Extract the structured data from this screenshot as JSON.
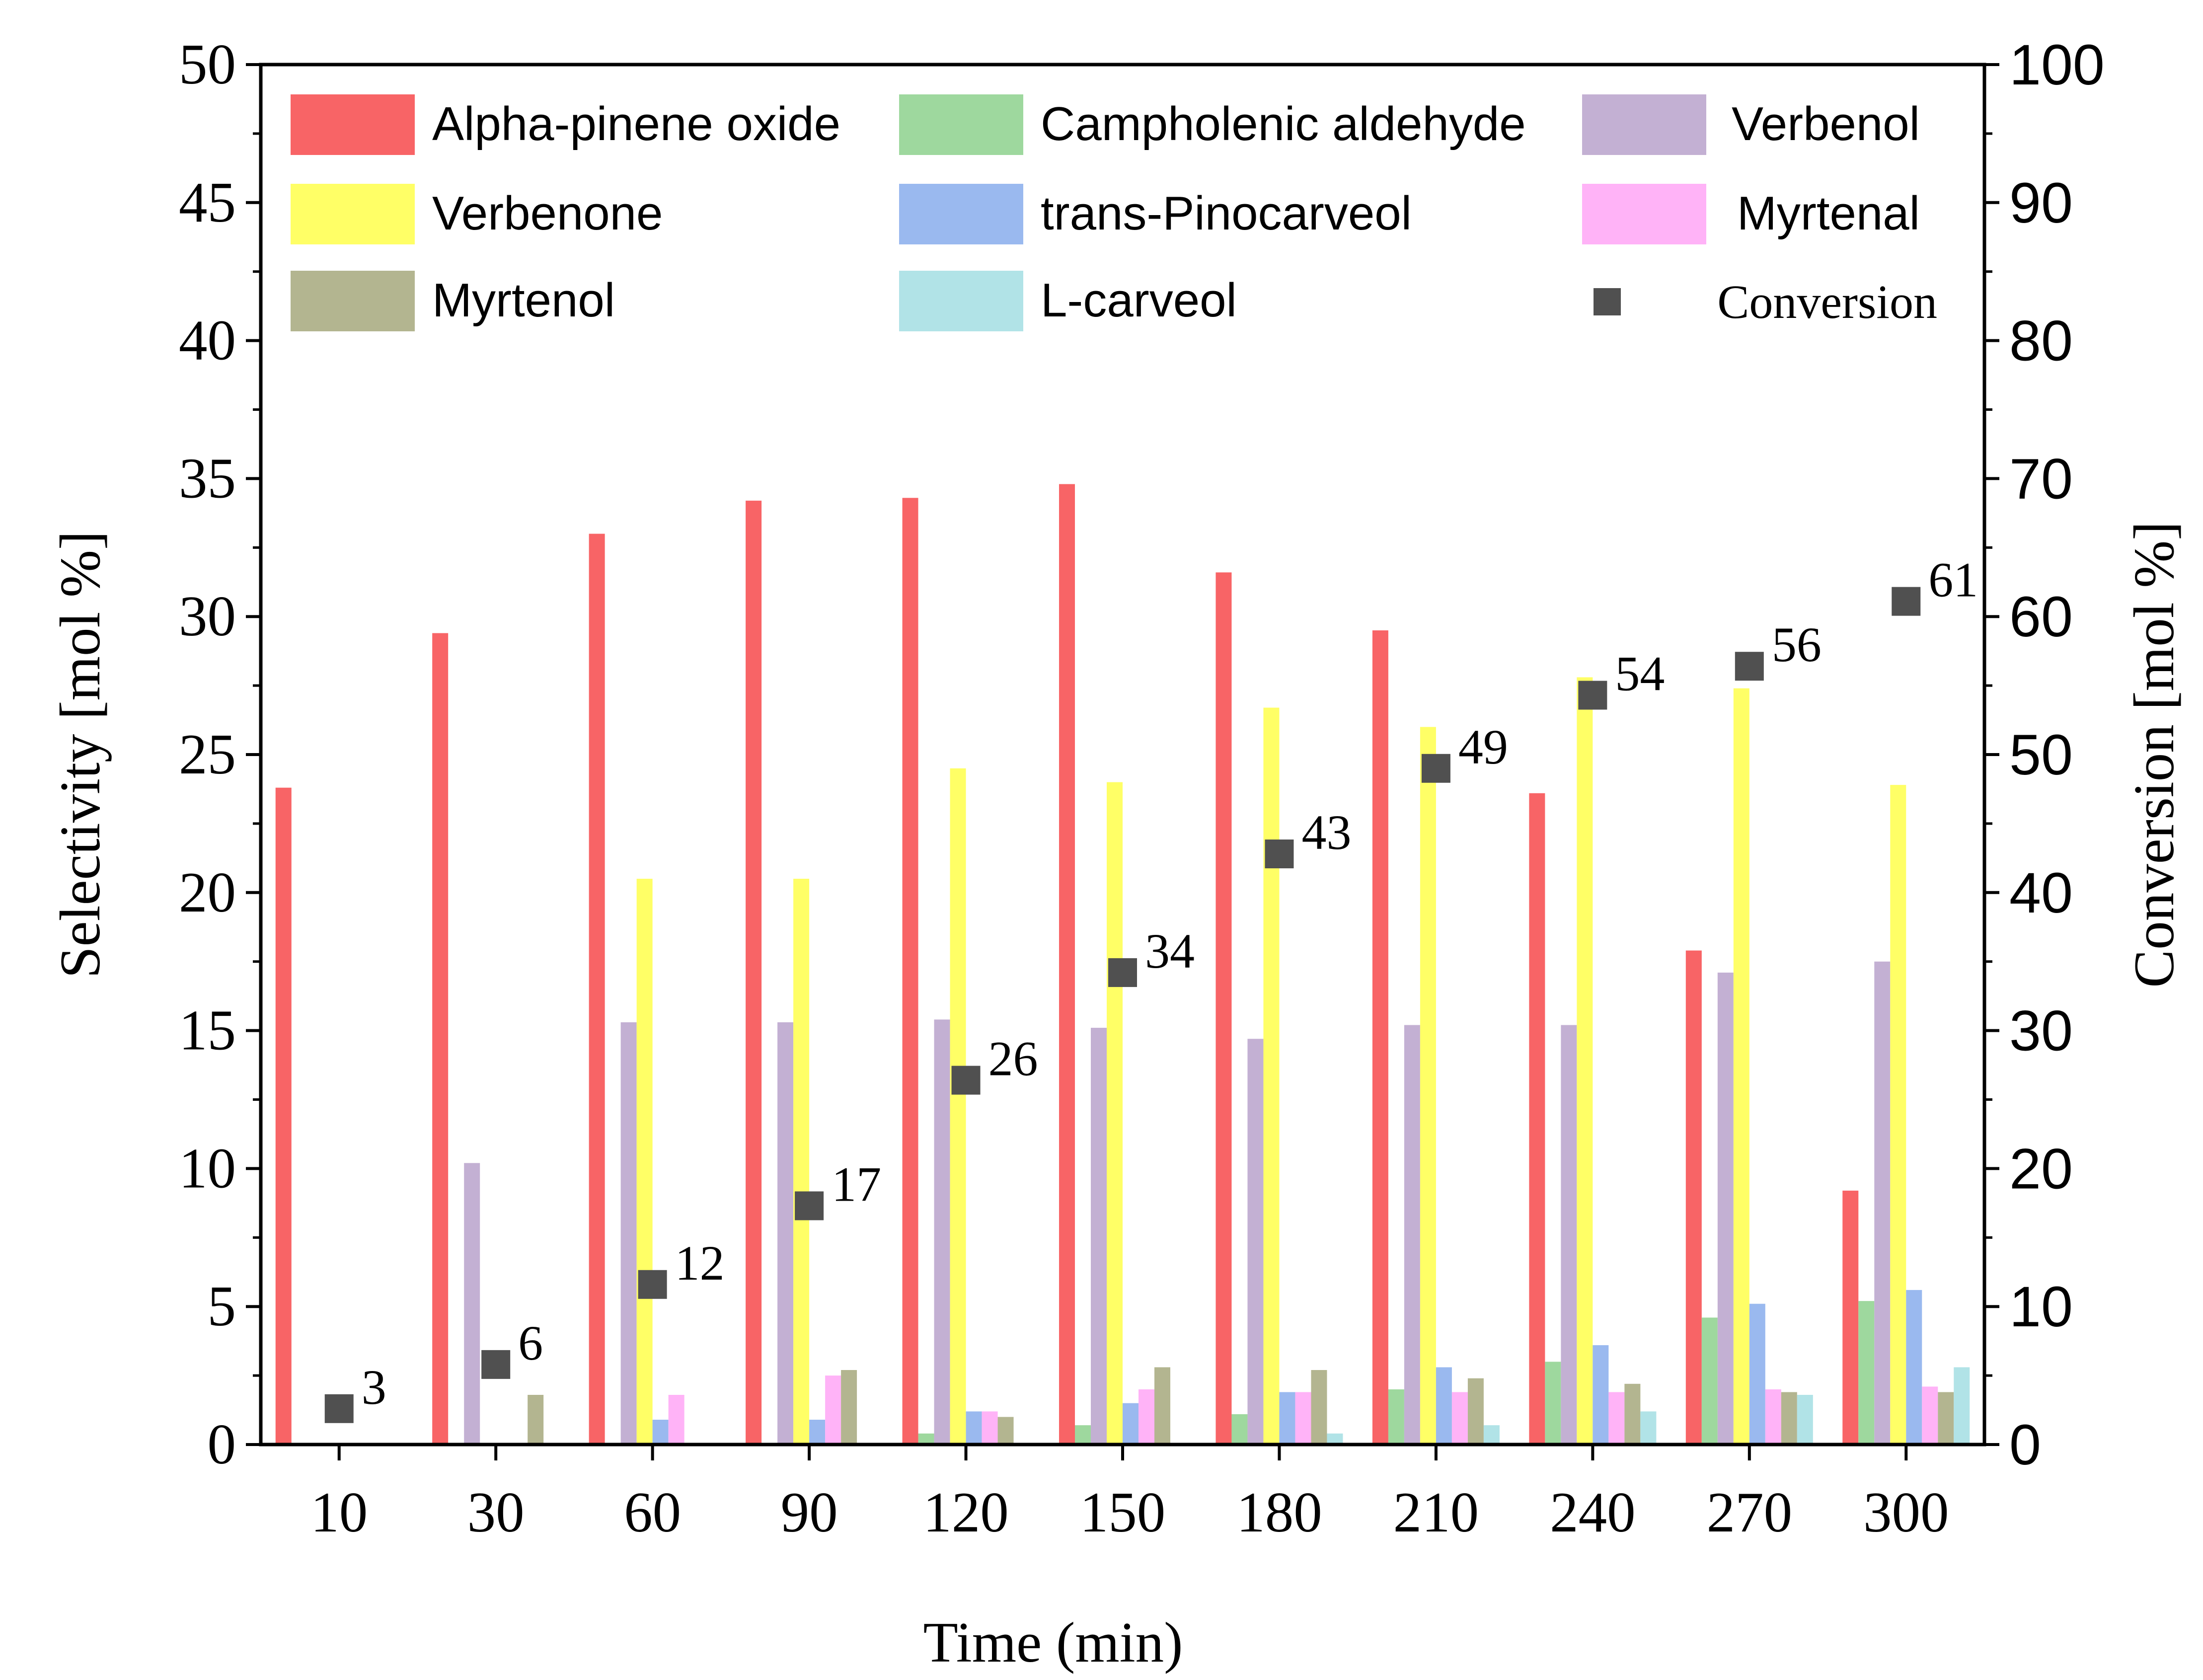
{
  "chart_data": {
    "type": "bar",
    "title": "",
    "xlabel": "Time (min)",
    "ylabel": "Selectivity [mol %]",
    "y2label": "Conversion [mol %]",
    "ylim": [
      0,
      50
    ],
    "y2lim": [
      0,
      100
    ],
    "yticks": [
      "0",
      "5",
      "10",
      "15",
      "20",
      "25",
      "30",
      "35",
      "40",
      "45",
      "50"
    ],
    "y2ticks": [
      "0",
      "10",
      "20",
      "30",
      "40",
      "50",
      "60",
      "70",
      "80",
      "90",
      "100"
    ],
    "categories": [
      "10",
      "30",
      "60",
      "90",
      "120",
      "150",
      "180",
      "210",
      "240",
      "270",
      "300"
    ],
    "legend_position": "top",
    "series": [
      {
        "name": "Alpha-pinene oxide",
        "color": "#f86466",
        "values": [
          23.8,
          29.4,
          33.0,
          34.2,
          34.3,
          34.8,
          31.6,
          29.5,
          23.6,
          17.9,
          9.2
        ]
      },
      {
        "name": "Campholenic aldehyde",
        "color": "#9ed89e",
        "values": [
          0,
          0,
          0,
          0,
          0.4,
          0.7,
          1.1,
          2.0,
          3.0,
          4.6,
          5.2
        ]
      },
      {
        "name": "Verbenol",
        "color": "#c3b0d3",
        "values": [
          0,
          10.2,
          15.3,
          15.3,
          15.4,
          15.1,
          14.7,
          15.2,
          15.2,
          17.1,
          17.5
        ]
      },
      {
        "name": "Verbenone",
        "color": "#ffff66",
        "values": [
          0,
          0,
          20.5,
          20.5,
          24.5,
          24.0,
          26.7,
          26.0,
          27.8,
          27.4,
          23.9
        ]
      },
      {
        "name": "trans-Pinocarveol",
        "color": "#9ab9ef",
        "values": [
          0,
          0,
          0.9,
          0.9,
          1.2,
          1.5,
          1.9,
          2.8,
          3.6,
          5.1,
          5.6
        ]
      },
      {
        "name": "Myrtenal",
        "color": "#ffb3f7",
        "values": [
          0,
          0,
          1.8,
          2.5,
          1.2,
          2.0,
          1.9,
          1.9,
          1.9,
          2.0,
          2.1
        ]
      },
      {
        "name": "Myrtenol",
        "color": "#b3b590",
        "values": [
          0,
          1.8,
          0,
          2.7,
          1.0,
          2.8,
          2.7,
          2.4,
          2.2,
          1.9,
          1.9
        ]
      },
      {
        "name": "L-carveol",
        "color": "#b1e3e7",
        "values": [
          0,
          0,
          0,
          0,
          0,
          0,
          0.4,
          0.7,
          1.2,
          1.8,
          2.8
        ]
      }
    ],
    "conversion": {
      "name": "Conversion",
      "color": "#505050",
      "values": [
        2.6,
        5.8,
        11.6,
        17.3,
        26.4,
        34.2,
        42.8,
        49.0,
        54.3,
        56.4,
        61.1
      ],
      "labels": [
        "3",
        "6",
        "12",
        "17",
        "26",
        "34",
        "43",
        "49",
        "54",
        "56",
        "61"
      ]
    }
  }
}
